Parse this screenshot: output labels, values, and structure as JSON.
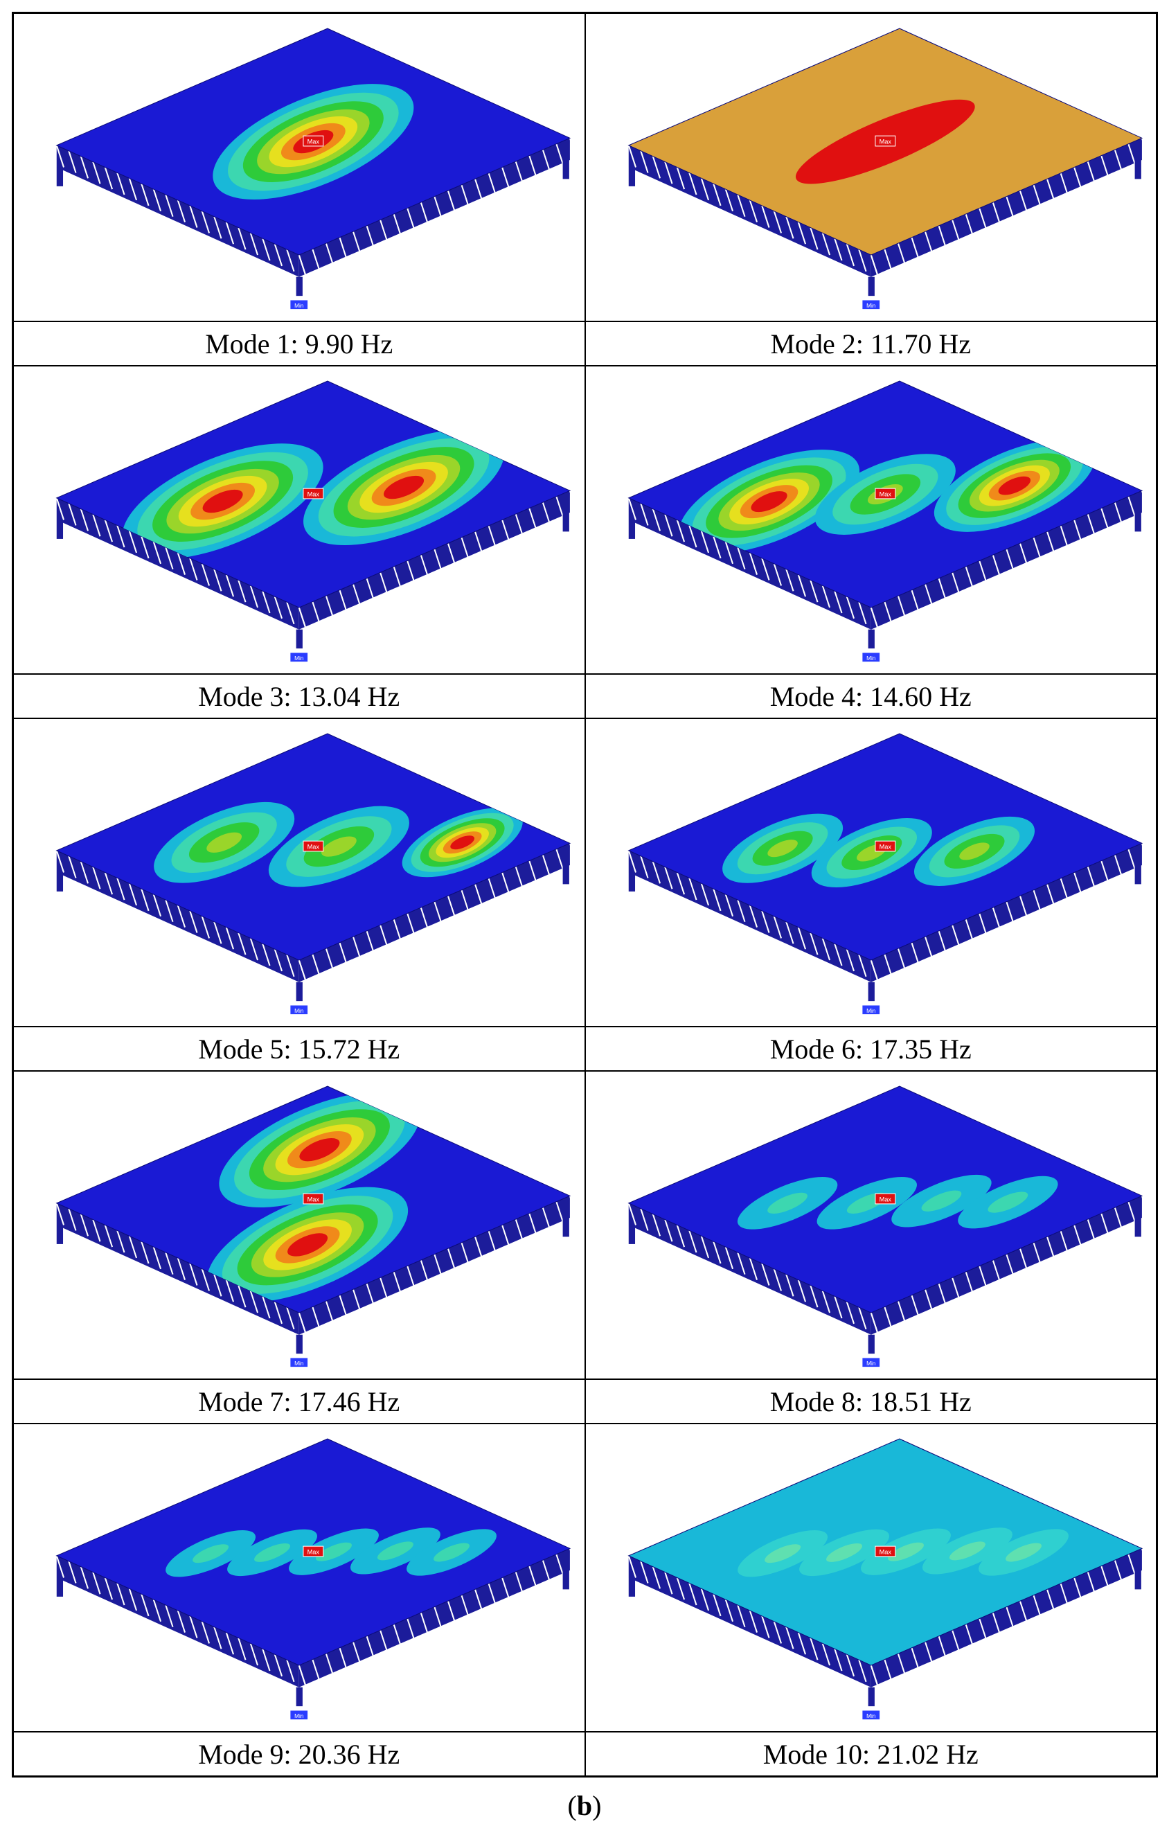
{
  "modes": [
    {
      "caption": "Mode 1: 9.90 Hz",
      "frequency_hz": 9.9,
      "max_tag": "Max",
      "min_tag": "Min"
    },
    {
      "caption": "Mode 2: 11.70 Hz",
      "frequency_hz": 11.7,
      "max_tag": "Max",
      "min_tag": "Min"
    },
    {
      "caption": "Mode 3: 13.04 Hz",
      "frequency_hz": 13.04,
      "max_tag": "Max",
      "min_tag": "Min"
    },
    {
      "caption": "Mode 4: 14.60 Hz",
      "frequency_hz": 14.6,
      "max_tag": "Max",
      "min_tag": "Min"
    },
    {
      "caption": "Mode 5: 15.72 Hz",
      "frequency_hz": 15.72,
      "max_tag": "Max",
      "min_tag": "Min"
    },
    {
      "caption": "Mode 6: 17.35 Hz",
      "frequency_hz": 17.35,
      "max_tag": "Max",
      "min_tag": "Min"
    },
    {
      "caption": "Mode 7: 17.46 Hz",
      "frequency_hz": 17.46,
      "max_tag": "Max",
      "min_tag": "Min"
    },
    {
      "caption": "Mode 8: 18.51 Hz",
      "frequency_hz": 18.51,
      "max_tag": "Max",
      "min_tag": "Min"
    },
    {
      "caption": "Mode 9: 20.36 Hz",
      "frequency_hz": 20.36,
      "max_tag": "Max",
      "min_tag": "Min"
    },
    {
      "caption": "Mode 10: 21.02 Hz",
      "frequency_hz": 21.02,
      "max_tag": "Max",
      "min_tag": "Min"
    }
  ],
  "sublabel": {
    "open": "(",
    "letter": "b",
    "close": ")"
  },
  "colors": {
    "blue": "#1a1ad4",
    "cyan": "#19b8d8",
    "green": "#2ecb3a",
    "yellow": "#e6e01e",
    "orange": "#f08a1a",
    "red": "#e01010",
    "tan": "#d9a03a"
  }
}
